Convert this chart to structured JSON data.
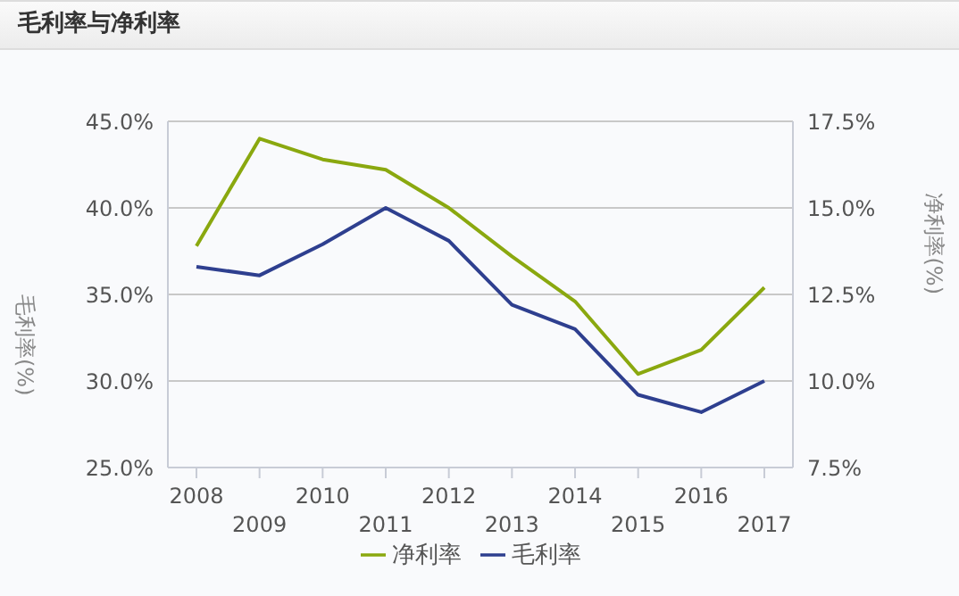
{
  "chart_data": {
    "type": "line",
    "title": "毛利率与净利率",
    "ylabel": "毛利率(%)",
    "y2label": "净利率(%)",
    "categories": [
      "2008",
      "2009",
      "2010",
      "2011",
      "2012",
      "2013",
      "2014",
      "2015",
      "2016",
      "2017"
    ],
    "series": [
      {
        "name": "毛利率",
        "color": "#2e3f8f",
        "values": [
          36.6,
          36.1,
          37.9,
          40.0,
          38.1,
          34.4,
          33.0,
          29.2,
          28.2,
          30.0
        ]
      },
      {
        "name": "净利率",
        "color": "#8aa80f",
        "axis": "y2",
        "values": [
          13.9,
          17.0,
          16.4,
          16.1,
          15.0,
          13.6,
          12.3,
          10.2,
          10.9,
          12.7
        ]
      }
    ],
    "ylim": [
      25,
      45
    ],
    "yticks": [
      {
        "value": 25,
        "label": "25.0%"
      },
      {
        "value": 30,
        "label": "30.0%"
      },
      {
        "value": 35,
        "label": "35.0%"
      },
      {
        "value": 40,
        "label": "40.0%"
      },
      {
        "value": 45,
        "label": "45.0%"
      }
    ],
    "y2lim": [
      7.5,
      17.5
    ],
    "y2ticks": [
      {
        "value": 7.5,
        "label": "7.5%"
      },
      {
        "value": 10,
        "label": "10.0%"
      },
      {
        "value": 12.5,
        "label": "12.5%"
      },
      {
        "value": 15,
        "label": "15.0%"
      },
      {
        "value": 17.5,
        "label": "17.5%"
      }
    ],
    "grid": "y",
    "legend": "bottom",
    "line_style": "solid",
    "marker": "none"
  }
}
